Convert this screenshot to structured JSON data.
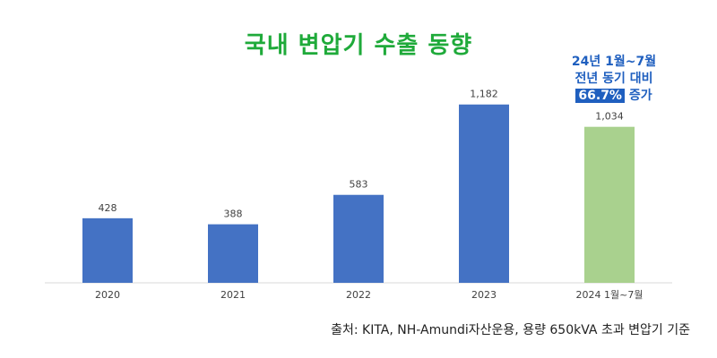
{
  "chart_data": {
    "type": "bar",
    "title": "국내 변압기 수출 동향",
    "categories": [
      "2020",
      "2021",
      "2022",
      "2023",
      "2024 1월~7월"
    ],
    "values": [
      428,
      388,
      583,
      1182,
      1034
    ],
    "value_labels": [
      "428",
      "388",
      "583",
      "1,182",
      "1,034"
    ],
    "bar_colors": [
      "#4472c4",
      "#4472c4",
      "#4472c4",
      "#4472c4",
      "#a9d18e"
    ],
    "ylim": [
      0,
      1400
    ],
    "grid": false,
    "annotation": {
      "line1": "24년 1월~7월",
      "line2": "전년 동기 대비",
      "highlight": "66.7%",
      "suffix": "증가"
    },
    "source": "출처: KITA, NH-Amundi자산운용, 용량 650kVA 초과 변압기 기준"
  }
}
